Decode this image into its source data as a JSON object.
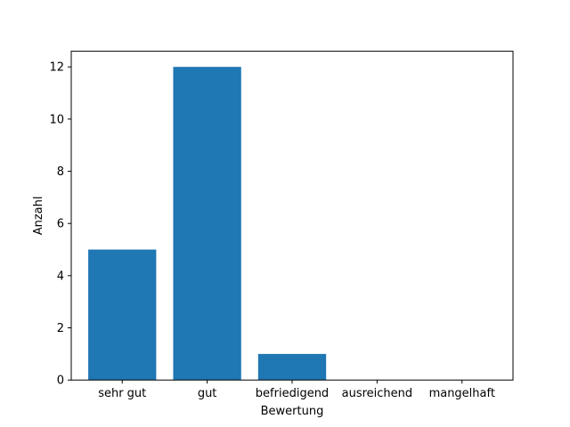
{
  "chart_data": {
    "type": "bar",
    "title": "",
    "xlabel": "Bewertung",
    "ylabel": "Anzahl",
    "categories": [
      "sehr gut",
      "gut",
      "befriedigend",
      "ausreichend",
      "mangelhaft"
    ],
    "values": [
      5,
      12,
      1,
      0,
      0
    ],
    "ylim": [
      0,
      12.6
    ],
    "yticks": [
      "0",
      "2",
      "4",
      "6",
      "8",
      "10",
      "12"
    ],
    "grid": false,
    "legend": "none",
    "bar_color": "#1f77b4"
  }
}
